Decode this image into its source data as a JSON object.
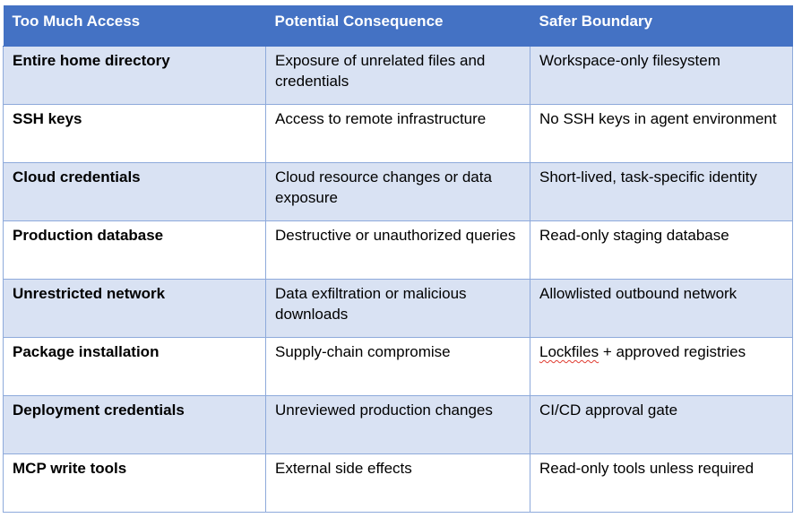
{
  "table": {
    "headers": [
      "Too Much Access",
      "Potential Consequence",
      "Safer Boundary"
    ],
    "rows": [
      {
        "access": "Entire home directory",
        "consequence": "Exposure of unrelated files and credentials",
        "boundary": "Workspace-only filesystem"
      },
      {
        "access": "SSH keys",
        "consequence": "Access to remote infrastructure",
        "boundary": "No SSH keys in agent environment"
      },
      {
        "access": "Cloud credentials",
        "consequence": "Cloud resource changes or data exposure",
        "boundary": "Short-lived, task-specific identity"
      },
      {
        "access": "Production database",
        "consequence": "Destructive or unauthorized queries",
        "boundary": "Read-only staging database"
      },
      {
        "access": "Unrestricted network",
        "consequence": "Data exfiltration or malicious downloads",
        "boundary": "Allowlisted outbound network"
      },
      {
        "access": "Package installation",
        "consequence": "Supply-chain compromise",
        "boundary_word": "Lockfiles",
        "boundary_rest": " + approved registries"
      },
      {
        "access": "Deployment credentials",
        "consequence": "Unreviewed production changes",
        "boundary": "CI/CD approval gate"
      },
      {
        "access": "MCP write tools",
        "consequence": "External side effects",
        "boundary": "Read-only tools unless required"
      }
    ]
  },
  "colors": {
    "header_bg": "#4472c4",
    "header_text": "#ffffff",
    "band_bg": "#d9e2f3",
    "border": "#8eaadb",
    "spellcheck": "#e03c31"
  }
}
